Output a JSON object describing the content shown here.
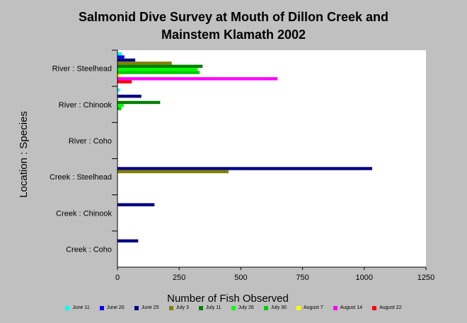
{
  "chart_data": {
    "type": "bar",
    "orientation": "horizontal",
    "title": "Salmonid Dive Survey at Mouth of Dillon Creek and Mainstem Klamath 2002",
    "title_lines": [
      "Salmonid Dive Survey at Mouth of Dillon Creek and",
      "Mainstem Klamath 2002"
    ],
    "xlabel": "Number of Fish Observed",
    "ylabel": "Location : Species",
    "xlim": [
      0,
      1250
    ],
    "xticks": [
      0,
      250,
      500,
      750,
      1000,
      1250
    ],
    "categories": [
      "River :  Steelhead",
      "River :  Chinook",
      "River :  Coho",
      "Creek : Steelhead",
      "Creek : Chinook",
      "Creek :  Coho"
    ],
    "legend_position": "bottom",
    "grid": false,
    "series": [
      {
        "name": "June 11",
        "color": "#00ffff",
        "values": [
          18,
          10,
          0,
          0,
          0,
          0
        ]
      },
      {
        "name": "June 20",
        "color": "#0000ff",
        "values": [
          28,
          0,
          0,
          0,
          0,
          0
        ]
      },
      {
        "name": "June 25",
        "color": "#000080",
        "values": [
          72,
          97,
          0,
          1032,
          150,
          84
        ]
      },
      {
        "name": "July 3",
        "color": "#808000",
        "values": [
          220,
          0,
          0,
          450,
          0,
          0
        ]
      },
      {
        "name": "July 11",
        "color": "#008000",
        "values": [
          345,
          173,
          0,
          0,
          0,
          0
        ]
      },
      {
        "name": "July 26",
        "color": "#00ff00",
        "values": [
          325,
          25,
          0,
          0,
          0,
          0
        ]
      },
      {
        "name": "July 30",
        "color": "#00cc00",
        "values": [
          333,
          15,
          0,
          0,
          0,
          0
        ]
      },
      {
        "name": "August 7",
        "color": "#ffff00",
        "values": [
          12,
          0,
          0,
          0,
          0,
          0
        ]
      },
      {
        "name": "August 14",
        "color": "#ff00ff",
        "values": [
          648,
          0,
          0,
          0,
          0,
          0
        ]
      },
      {
        "name": "August 22",
        "color": "#ff0000",
        "values": [
          58,
          0,
          0,
          0,
          0,
          0
        ]
      }
    ]
  }
}
